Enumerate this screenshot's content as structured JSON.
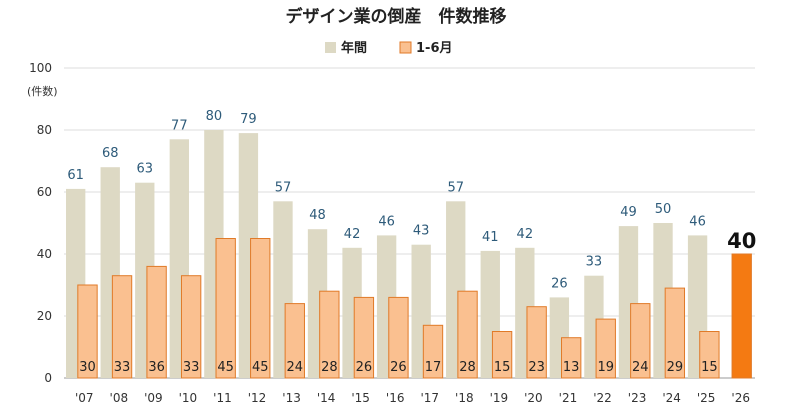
{
  "chart_data": {
    "type": "bar",
    "title": "デザイン業の倒産　件数推移",
    "unit_label": "(件数)",
    "ylim": [
      0,
      100
    ],
    "yticks": [
      0,
      20,
      40,
      60,
      80,
      100
    ],
    "grid": true,
    "legend_position": "top-center",
    "categories": [
      "'07",
      "'08",
      "'09",
      "'10",
      "'11",
      "'12",
      "'13",
      "'14",
      "'15",
      "'16",
      "'17",
      "'18",
      "'19",
      "'20",
      "'21",
      "'22",
      "'23",
      "'24",
      "'25",
      "'26"
    ],
    "series": [
      {
        "name": "年間",
        "color": "#ddd9c4",
        "values": [
          61,
          68,
          63,
          77,
          80,
          79,
          57,
          48,
          42,
          46,
          43,
          57,
          41,
          42,
          26,
          33,
          49,
          50,
          46,
          null
        ]
      },
      {
        "name": "1-6月",
        "color": "#fac090",
        "highlight_color": "#f47a12",
        "values": [
          30,
          33,
          36,
          33,
          45,
          45,
          24,
          28,
          26,
          26,
          17,
          28,
          15,
          23,
          13,
          19,
          24,
          29,
          15,
          40
        ]
      }
    ]
  }
}
